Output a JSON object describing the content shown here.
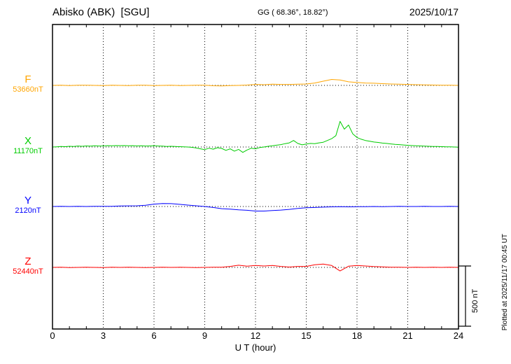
{
  "header": {
    "station": "Abisko (ABK)  [SGU]",
    "coords": "GG ( 68.36°, 18.82°)",
    "date": "2025/10/17"
  },
  "footer": {
    "plotted_at": "Plotted at 2025/11/17 00:45 UT"
  },
  "chart_data": {
    "type": "line",
    "title": "Abisko (ABK) [SGU] magnetogram 2025/10/17",
    "xlabel": "U T (hour)",
    "ylabel": "nT",
    "x_range": [
      0,
      24
    ],
    "x_ticks": [
      0,
      3,
      6,
      9,
      12,
      15,
      18,
      21,
      24
    ],
    "x_step_hours": 0.5,
    "grid": "dotted-vertical-every-3h",
    "scale_bar": {
      "label": "500 nT",
      "nT": 500
    },
    "series": [
      {
        "name": "F",
        "baseline_label": "53660nT",
        "baseline_nT": 53660,
        "color": "#FFA500",
        "values_nT_offset": [
          0,
          2,
          -1,
          1,
          2,
          0,
          -2,
          1,
          0,
          -1,
          2,
          1,
          -2,
          0,
          1,
          -1,
          0,
          2,
          1,
          -3,
          -4,
          -2,
          0,
          3,
          8,
          6,
          10,
          8,
          8,
          10,
          12,
          20,
          35,
          50,
          45,
          30,
          25,
          20,
          18,
          15,
          12,
          10,
          8,
          6,
          4,
          3,
          2,
          1,
          0
        ]
      },
      {
        "name": "X",
        "baseline_label": "11170nT",
        "baseline_nT": 11170,
        "color": "#00CC00",
        "step_hours": 0.25,
        "values_nT_offset": [
          0,
          2,
          4,
          3,
          6,
          5,
          8,
          6,
          9,
          7,
          10,
          8,
          9,
          11,
          10,
          12,
          11,
          12,
          10,
          11,
          9,
          10,
          8,
          9,
          10,
          8,
          7,
          5,
          6,
          4,
          3,
          2,
          0,
          -3,
          -8,
          -15,
          -22,
          -10,
          -18,
          -6,
          -12,
          -28,
          -15,
          -35,
          -20,
          -45,
          -25,
          -10,
          -15,
          -5,
          0,
          6,
          10,
          15,
          20,
          28,
          35,
          55,
          30,
          18,
          25,
          30,
          28,
          35,
          40,
          55,
          70,
          95,
          215,
          150,
          185,
          110,
          80,
          65,
          55,
          48,
          42,
          38,
          33,
          30,
          26,
          22,
          20,
          17,
          14,
          12,
          10,
          9,
          7,
          6,
          5,
          4,
          3,
          2,
          1,
          0,
          -2
        ]
      },
      {
        "name": "Y",
        "baseline_label": "2120nT",
        "baseline_nT": 2120,
        "color": "#0000FF",
        "values_nT_offset": [
          0,
          1,
          0,
          1,
          0,
          2,
          1,
          2,
          4,
          5,
          6,
          10,
          20,
          25,
          24,
          18,
          12,
          6,
          0,
          -8,
          -18,
          -22,
          -28,
          -32,
          -38,
          -38,
          -34,
          -30,
          -24,
          -16,
          -10,
          -8,
          -5,
          -3,
          -2,
          -3,
          -2,
          -1,
          0,
          -1,
          0,
          1,
          0,
          0,
          1,
          0,
          0,
          1,
          0
        ]
      },
      {
        "name": "Z",
        "baseline_label": "52440nT",
        "baseline_nT": 52440,
        "color": "#FF0000",
        "values_nT_offset": [
          0,
          1,
          -1,
          0,
          1,
          0,
          -1,
          1,
          0,
          1,
          0,
          -1,
          0,
          1,
          0,
          1,
          0,
          -1,
          0,
          2,
          1,
          8,
          18,
          10,
          16,
          12,
          16,
          8,
          3,
          8,
          8,
          22,
          28,
          16,
          -30,
          10,
          16,
          12,
          7,
          4,
          2,
          1,
          0,
          1,
          0,
          1,
          0,
          1,
          0
        ]
      }
    ]
  }
}
